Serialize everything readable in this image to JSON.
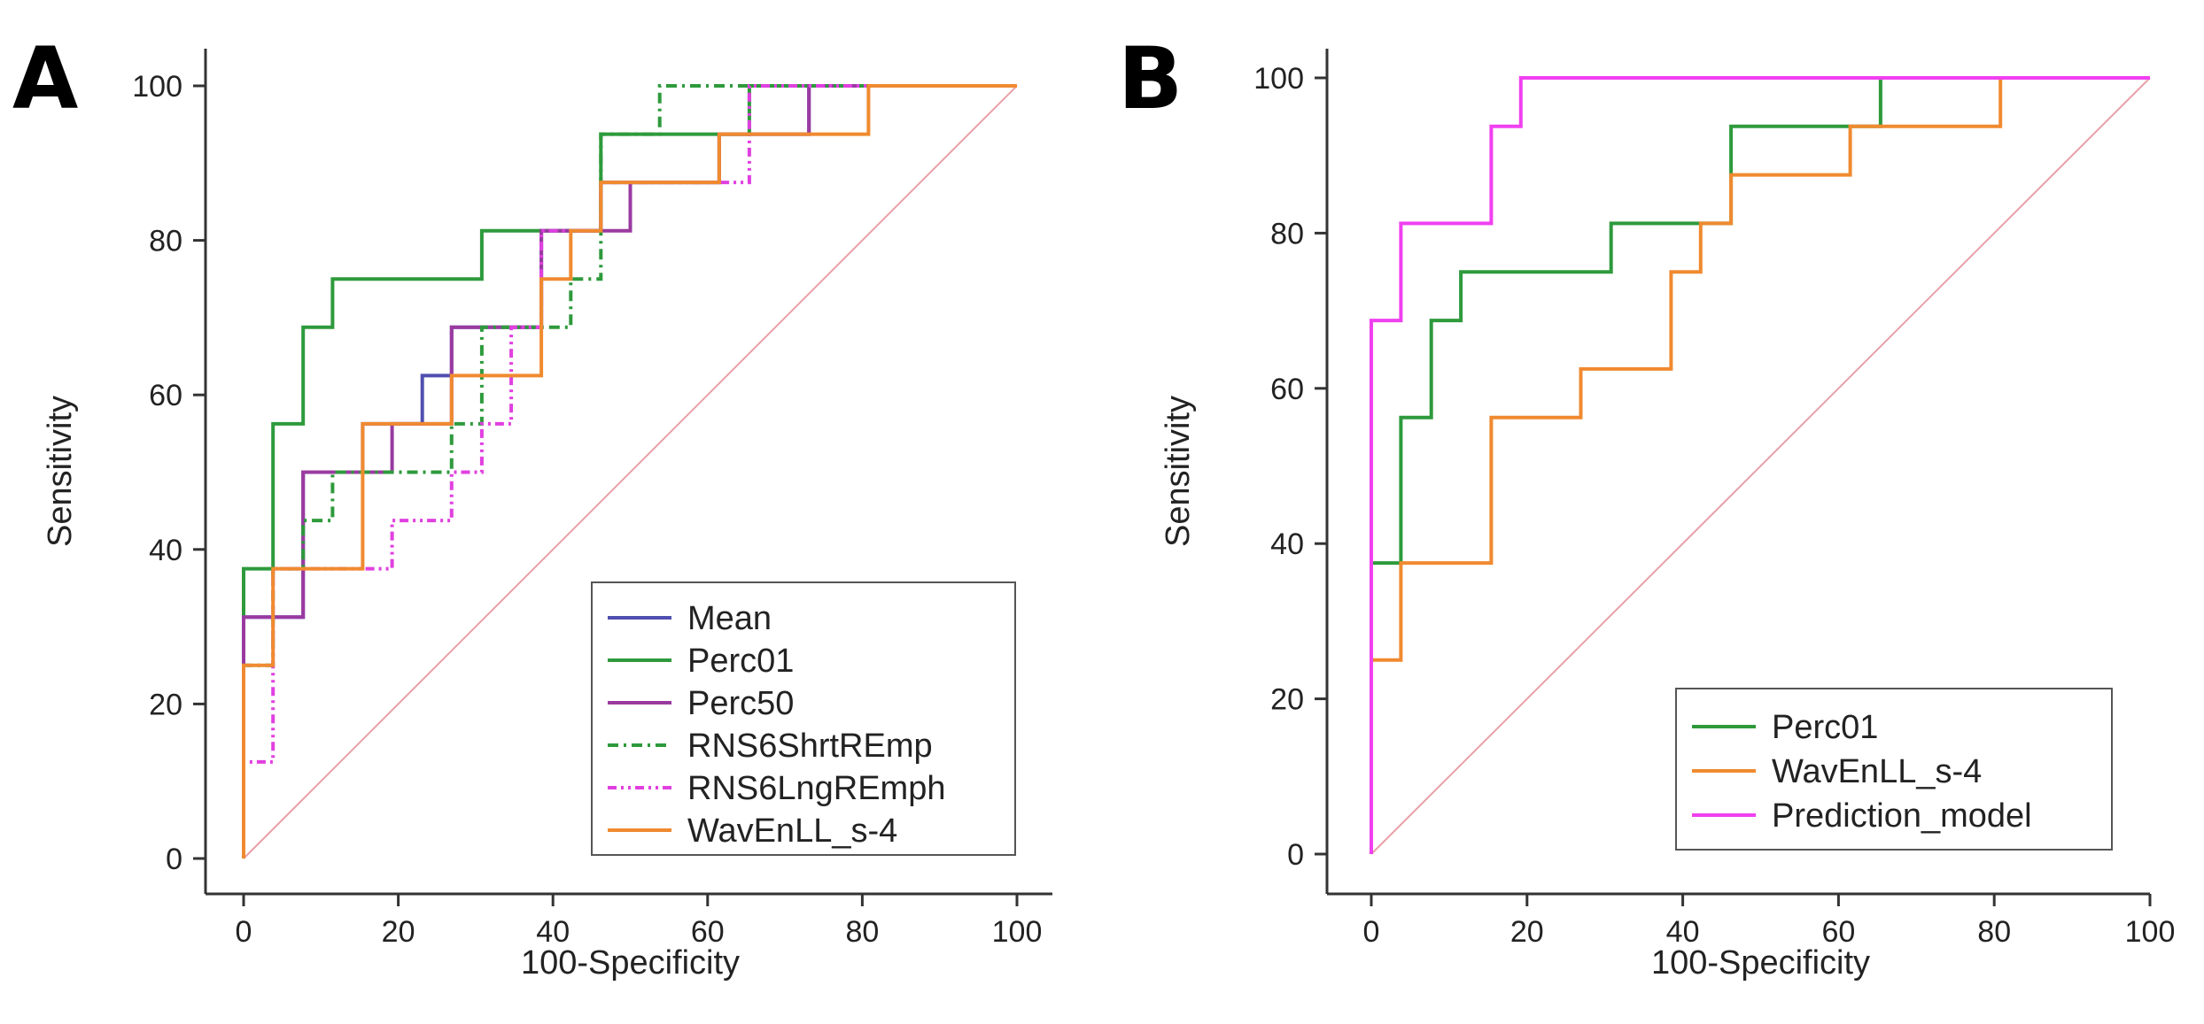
{
  "chart_data": [
    {
      "panel": "A",
      "type": "line",
      "xlabel": "100-Specificity",
      "ylabel": "Sensitivity",
      "xlim": [
        0,
        100
      ],
      "ylim": [
        0,
        100
      ],
      "xticks": [
        0,
        20,
        40,
        60,
        80,
        100
      ],
      "yticks": [
        0,
        20,
        40,
        60,
        80,
        100
      ],
      "grid": false,
      "legend_position": "bottom-right",
      "reference_line": {
        "name": "chance diagonal",
        "color": "#e8a0a8",
        "points": [
          [
            0,
            0
          ],
          [
            100,
            100
          ]
        ]
      },
      "series": [
        {
          "name": "Mean",
          "color": "#4f4fb0",
          "dash": "solid",
          "points": [
            [
              0,
              0
            ],
            [
              0,
              31.25
            ],
            [
              7.7,
              31.25
            ],
            [
              7.7,
              50
            ],
            [
              15.4,
              50
            ],
            [
              15.4,
              56.25
            ],
            [
              23.1,
              56.25
            ],
            [
              23.1,
              62.5
            ],
            [
              26.9,
              62.5
            ],
            [
              26.9,
              68.75
            ],
            [
              38.5,
              68.75
            ],
            [
              38.5,
              81.25
            ],
            [
              46.2,
              81.25
            ],
            [
              46.2,
              87.5
            ],
            [
              61.5,
              87.5
            ],
            [
              61.5,
              93.75
            ],
            [
              73.1,
              93.75
            ],
            [
              73.1,
              100
            ],
            [
              100,
              100
            ]
          ]
        },
        {
          "name": "Perc01",
          "color": "#2e9a3c",
          "dash": "solid",
          "points": [
            [
              0,
              0
            ],
            [
              0,
              37.5
            ],
            [
              3.8,
              37.5
            ],
            [
              3.8,
              56.25
            ],
            [
              7.7,
              56.25
            ],
            [
              7.7,
              68.75
            ],
            [
              11.5,
              68.75
            ],
            [
              11.5,
              75
            ],
            [
              30.8,
              75
            ],
            [
              30.8,
              81.25
            ],
            [
              46.2,
              81.25
            ],
            [
              46.2,
              93.75
            ],
            [
              65.4,
              93.75
            ],
            [
              65.4,
              100
            ],
            [
              100,
              100
            ]
          ]
        },
        {
          "name": "Perc50",
          "color": "#9a3aa0",
          "dash": "solid",
          "points": [
            [
              0,
              0
            ],
            [
              0,
              31.25
            ],
            [
              7.7,
              31.25
            ],
            [
              7.7,
              50
            ],
            [
              19.2,
              50
            ],
            [
              19.2,
              56.25
            ],
            [
              26.9,
              56.25
            ],
            [
              26.9,
              68.75
            ],
            [
              38.5,
              68.75
            ],
            [
              38.5,
              81.25
            ],
            [
              50,
              81.25
            ],
            [
              50,
              87.5
            ],
            [
              61.5,
              87.5
            ],
            [
              61.5,
              93.75
            ],
            [
              73.1,
              93.75
            ],
            [
              73.1,
              100
            ],
            [
              100,
              100
            ]
          ]
        },
        {
          "name": "RNS6ShrtREmp",
          "color": "#2e9a3c",
          "dash": "12 6 3 6",
          "points": [
            [
              0,
              0
            ],
            [
              0,
              25
            ],
            [
              3.8,
              25
            ],
            [
              3.8,
              37.5
            ],
            [
              7.7,
              37.5
            ],
            [
              7.7,
              43.75
            ],
            [
              11.5,
              43.75
            ],
            [
              11.5,
              50
            ],
            [
              26.9,
              50
            ],
            [
              26.9,
              56.25
            ],
            [
              30.8,
              56.25
            ],
            [
              30.8,
              68.75
            ],
            [
              42.3,
              68.75
            ],
            [
              42.3,
              75
            ],
            [
              46.2,
              75
            ],
            [
              46.2,
              93.75
            ],
            [
              53.8,
              93.75
            ],
            [
              53.8,
              100
            ],
            [
              100,
              100
            ]
          ]
        },
        {
          "name": "RNS6LngREmph",
          "color": "#e040e0",
          "dash": "10 5 3 5 3 5",
          "points": [
            [
              0,
              0
            ],
            [
              0,
              12.5
            ],
            [
              3.8,
              12.5
            ],
            [
              3.8,
              37.5
            ],
            [
              19.2,
              37.5
            ],
            [
              19.2,
              43.75
            ],
            [
              26.9,
              43.75
            ],
            [
              26.9,
              50
            ],
            [
              30.8,
              50
            ],
            [
              30.8,
              56.25
            ],
            [
              34.6,
              56.25
            ],
            [
              34.6,
              68.75
            ],
            [
              38.5,
              68.75
            ],
            [
              38.5,
              81.25
            ],
            [
              46.2,
              81.25
            ],
            [
              46.2,
              87.5
            ],
            [
              65.4,
              87.5
            ],
            [
              65.4,
              100
            ],
            [
              100,
              100
            ]
          ]
        },
        {
          "name": "WavEnLL_s-4",
          "color": "#f08a30",
          "dash": "solid",
          "points": [
            [
              0,
              0
            ],
            [
              0,
              25
            ],
            [
              3.8,
              25
            ],
            [
              3.8,
              37.5
            ],
            [
              15.4,
              37.5
            ],
            [
              15.4,
              56.25
            ],
            [
              26.9,
              56.25
            ],
            [
              26.9,
              62.5
            ],
            [
              38.5,
              62.5
            ],
            [
              38.5,
              75
            ],
            [
              42.3,
              75
            ],
            [
              42.3,
              81.25
            ],
            [
              46.2,
              81.25
            ],
            [
              46.2,
              87.5
            ],
            [
              61.5,
              87.5
            ],
            [
              61.5,
              93.75
            ],
            [
              80.8,
              93.75
            ],
            [
              80.8,
              100
            ],
            [
              100,
              100
            ]
          ]
        }
      ]
    },
    {
      "panel": "B",
      "type": "line",
      "xlabel": "100-Specificity",
      "ylabel": "Sensitivity",
      "xlim": [
        0,
        100
      ],
      "ylim": [
        0,
        100
      ],
      "xticks": [
        0,
        20,
        40,
        60,
        80,
        100
      ],
      "yticks": [
        0,
        20,
        40,
        60,
        80,
        100
      ],
      "grid": false,
      "legend_position": "bottom-right",
      "reference_line": {
        "name": "chance diagonal",
        "color": "#e8a0a8",
        "points": [
          [
            0,
            0
          ],
          [
            100,
            100
          ]
        ]
      },
      "series": [
        {
          "name": "Perc01",
          "color": "#2e9a3c",
          "dash": "solid",
          "points": [
            [
              0,
              0
            ],
            [
              0,
              37.5
            ],
            [
              3.8,
              37.5
            ],
            [
              3.8,
              56.25
            ],
            [
              7.7,
              56.25
            ],
            [
              7.7,
              68.75
            ],
            [
              11.5,
              68.75
            ],
            [
              11.5,
              75
            ],
            [
              30.8,
              75
            ],
            [
              30.8,
              81.25
            ],
            [
              46.2,
              81.25
            ],
            [
              46.2,
              93.75
            ],
            [
              65.4,
              93.75
            ],
            [
              65.4,
              100
            ],
            [
              100,
              100
            ]
          ]
        },
        {
          "name": "WavEnLL_s-4",
          "color": "#f08a30",
          "dash": "solid",
          "points": [
            [
              0,
              0
            ],
            [
              0,
              25
            ],
            [
              3.8,
              25
            ],
            [
              3.8,
              37.5
            ],
            [
              15.4,
              37.5
            ],
            [
              15.4,
              56.25
            ],
            [
              26.9,
              56.25
            ],
            [
              26.9,
              62.5
            ],
            [
              38.5,
              62.5
            ],
            [
              38.5,
              75
            ],
            [
              42.3,
              75
            ],
            [
              42.3,
              81.25
            ],
            [
              46.2,
              81.25
            ],
            [
              46.2,
              87.5
            ],
            [
              61.5,
              87.5
            ],
            [
              61.5,
              93.75
            ],
            [
              80.8,
              93.75
            ],
            [
              80.8,
              100
            ],
            [
              100,
              100
            ]
          ]
        },
        {
          "name": "Prediction_model",
          "color": "#f040f0",
          "dash": "solid",
          "points": [
            [
              0,
              0
            ],
            [
              0,
              68.75
            ],
            [
              3.8,
              68.75
            ],
            [
              3.8,
              81.25
            ],
            [
              15.4,
              81.25
            ],
            [
              15.4,
              93.75
            ],
            [
              19.2,
              93.75
            ],
            [
              19.2,
              100
            ],
            [
              100,
              100
            ]
          ]
        }
      ]
    }
  ]
}
